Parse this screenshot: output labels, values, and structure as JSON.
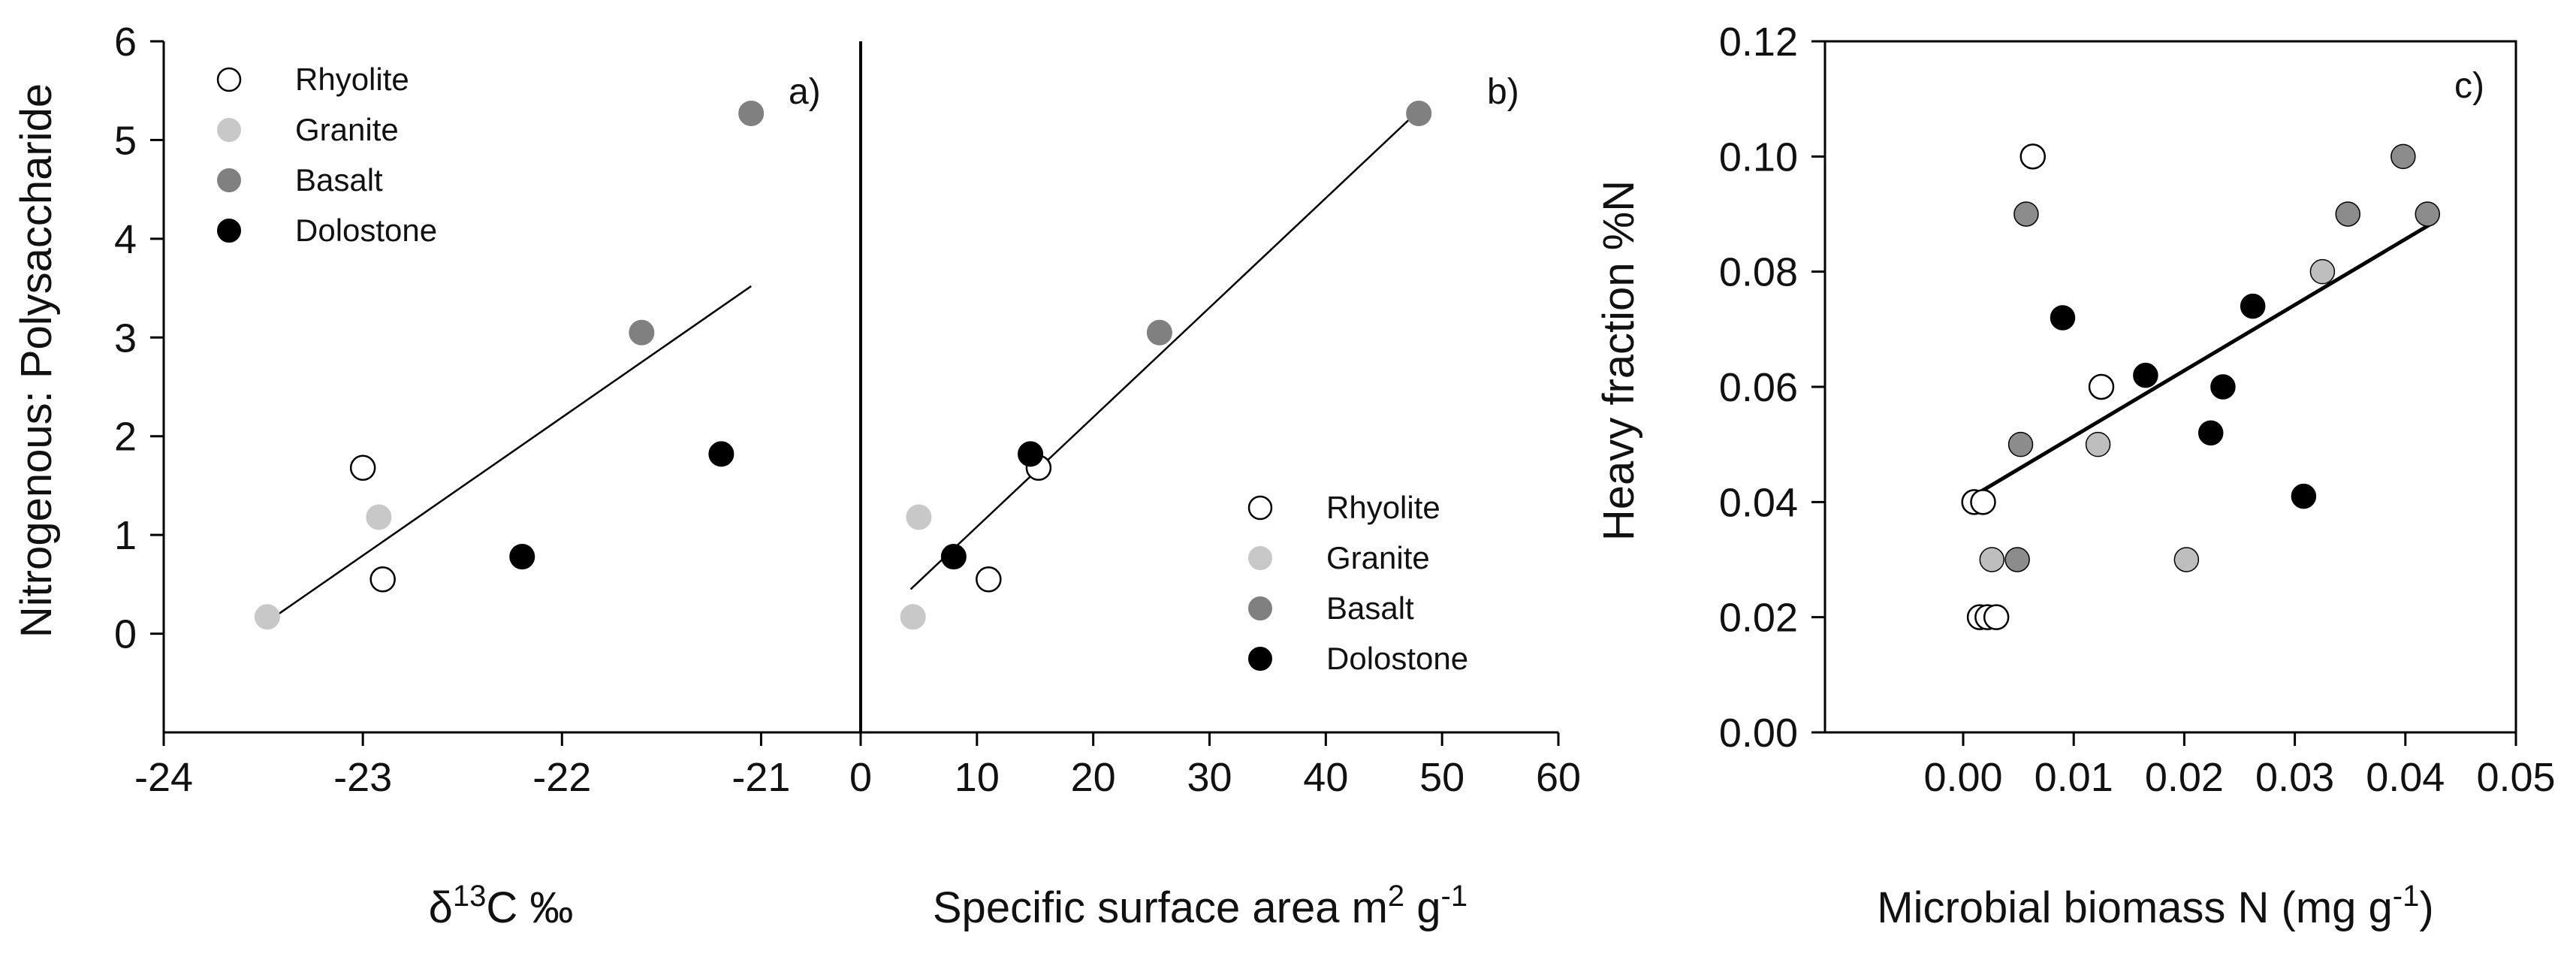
{
  "chart_data": [
    {
      "type": "scatter",
      "panel_label": "a)",
      "xlabel": {
        "prefix": "δ",
        "sup": "13",
        "suffix": "C ‰"
      },
      "ylabel": "Nitrogenous: Polysaccharide",
      "xlim": [
        -24,
        -20.5
      ],
      "ylim": [
        -1,
        6
      ],
      "xticks": [
        "-24",
        "-23",
        "-22",
        "-21"
      ],
      "yticks": [
        "0",
        "1",
        "2",
        "3",
        "4",
        "5",
        "6"
      ],
      "legend": [
        "Rhyolite",
        "Granite",
        "Basalt",
        "Dolostone"
      ],
      "series": [
        {
          "name": "Rhyolite",
          "color": "#ffffff",
          "x": [
            -23.0,
            -22.9
          ],
          "y": [
            1.68,
            0.55
          ]
        },
        {
          "name": "Granite",
          "color": "#c8c8c8",
          "x": [
            -23.48,
            -22.92
          ],
          "y": [
            0.17,
            1.18
          ]
        },
        {
          "name": "Basalt",
          "color": "#808080",
          "x": [
            -21.6,
            -21.05
          ],
          "y": [
            3.05,
            5.27
          ]
        },
        {
          "name": "Dolostone",
          "color": "#000000",
          "x": [
            -22.2,
            -21.2
          ],
          "y": [
            0.78,
            1.82
          ]
        }
      ],
      "fit": {
        "x": [
          -23.48,
          -21.05
        ],
        "y": [
          0.12,
          3.52
        ]
      }
    },
    {
      "type": "scatter",
      "panel_label": "b)",
      "xlabel": {
        "prefix": "Specific surface area m",
        "sup": "2",
        "suffix": " g",
        "sup2": "-1"
      },
      "xlim": [
        0,
        60
      ],
      "ylim": [
        -1,
        6
      ],
      "xticks": [
        "0",
        "10",
        "20",
        "30",
        "40",
        "50",
        "60"
      ],
      "legend": [
        "Rhyolite",
        "Granite",
        "Basalt",
        "Dolostone"
      ],
      "series": [
        {
          "name": "Rhyolite",
          "color": "#ffffff",
          "x": [
            15.3,
            11.0
          ],
          "y": [
            1.68,
            0.55
          ]
        },
        {
          "name": "Granite",
          "color": "#c8c8c8",
          "x": [
            4.5,
            5.0
          ],
          "y": [
            0.17,
            1.18
          ]
        },
        {
          "name": "Basalt",
          "color": "#808080",
          "x": [
            25.7,
            48.0
          ],
          "y": [
            3.05,
            5.27
          ]
        },
        {
          "name": "Dolostone",
          "color": "#000000",
          "x": [
            8.0,
            14.6
          ],
          "y": [
            0.78,
            1.82
          ]
        }
      ],
      "fit": {
        "x": [
          4.3,
          48.0
        ],
        "y": [
          0.45,
          5.3
        ]
      }
    },
    {
      "type": "scatter",
      "panel_label": "c)",
      "xlabel": {
        "prefix": "Microbial biomass N (mg g",
        "sup": "-1",
        "suffix": ")"
      },
      "ylabel": "Heavy fraction %N",
      "xlim": [
        -0.0125,
        0.05
      ],
      "ylim": [
        0,
        0.12
      ],
      "xticks": [
        "0.00",
        "0.01",
        "0.02",
        "0.03",
        "0.04",
        "0.05"
      ],
      "yticks": [
        "0.00",
        "0.02",
        "0.04",
        "0.06",
        "0.08",
        "0.10",
        "0.12"
      ],
      "series": [
        {
          "name": "Rhyolite",
          "color": "#ffffff",
          "x": [
            0.0063,
            0.0125,
            0.001,
            0.0018,
            0.0015,
            0.0022,
            0.003
          ],
          "y": [
            0.1,
            0.06,
            0.04,
            0.04,
            0.02,
            0.02,
            0.02
          ]
        },
        {
          "name": "Granite",
          "color": "#bebebe",
          "x": [
            0.0325,
            0.0122,
            0.0026,
            0.0202
          ],
          "y": [
            0.08,
            0.05,
            0.03,
            0.03
          ]
        },
        {
          "name": "Basalt",
          "color": "#8c8c8c",
          "x": [
            0.0057,
            0.0398,
            0.0348,
            0.042,
            0.0052,
            0.0049
          ],
          "y": [
            0.09,
            0.1,
            0.09,
            0.09,
            0.05,
            0.03
          ]
        },
        {
          "name": "Dolostone",
          "color": "#000000",
          "x": [
            0.009,
            0.0165,
            0.0235,
            0.0262,
            0.0224,
            0.0308
          ],
          "y": [
            0.072,
            0.062,
            0.06,
            0.074,
            0.052,
            0.041
          ]
        }
      ],
      "fit": {
        "x": [
          0.0,
          0.0425
        ],
        "y": [
          0.04,
          0.0885
        ]
      }
    }
  ]
}
